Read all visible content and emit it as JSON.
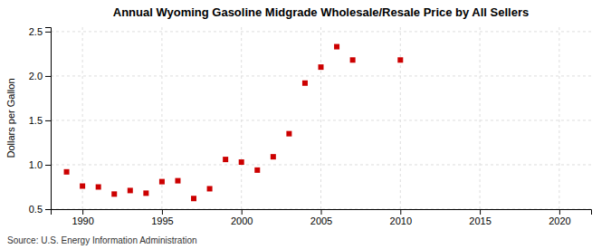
{
  "chart_data": {
    "type": "scatter",
    "title": "Annual Wyoming Gasoline Midgrade Wholesale/Resale Price by All Sellers",
    "ylabel": "Dollars per Gallon",
    "annotations": [
      "Source: U.S. Energy Information Administration"
    ],
    "color": "#cc0000",
    "marker": "square",
    "grid": true,
    "xlim": [
      1988,
      2022
    ],
    "ylim": [
      0.5,
      2.55
    ],
    "xticks": [
      1990,
      1995,
      2000,
      2005,
      2010,
      2015,
      2020
    ],
    "yticks": [
      0.5,
      {
        "value": 1.0,
        "label": "1.0"
      },
      1.5,
      {
        "value": 2.0,
        "label": "2.0"
      },
      2.5
    ],
    "x": [
      1989,
      1990,
      1991,
      1992,
      1993,
      1994,
      1995,
      1996,
      1997,
      1998,
      1999,
      2000,
      2001,
      2002,
      2003,
      2004,
      2005,
      2006,
      2007,
      2010
    ],
    "values": [
      0.92,
      0.76,
      0.75,
      0.67,
      0.71,
      0.68,
      0.81,
      0.82,
      0.62,
      0.73,
      1.06,
      1.03,
      0.94,
      1.09,
      1.35,
      1.92,
      2.1,
      2.33,
      2.18,
      2.18
    ]
  }
}
